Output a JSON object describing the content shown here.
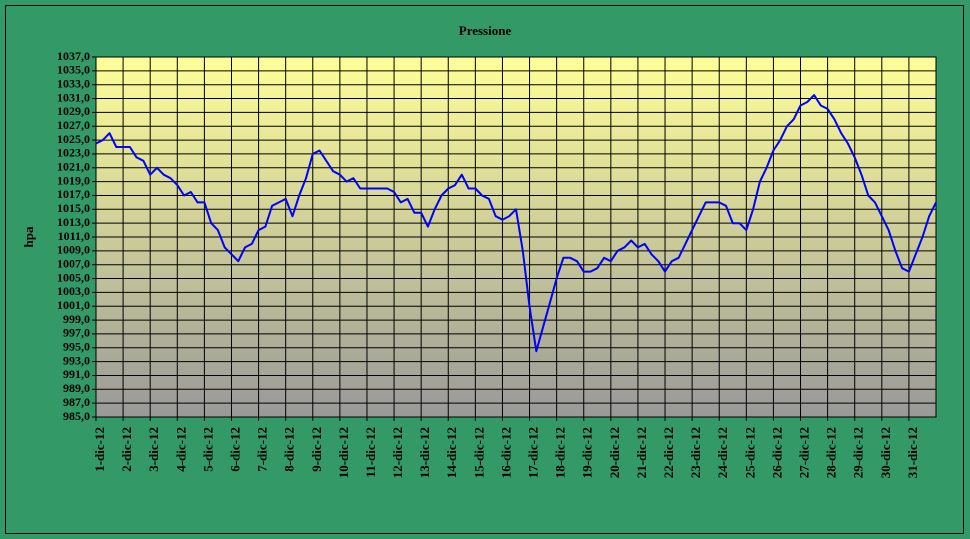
{
  "chart_data": {
    "type": "line",
    "title": "Pressione",
    "y_label": "hpa",
    "xlim": [
      0,
      31
    ],
    "xticks": [
      {
        "value": 0,
        "label": "1-dic-12"
      },
      {
        "value": 1,
        "label": "2-dic-12"
      },
      {
        "value": 2,
        "label": "3-dic-12"
      },
      {
        "value": 3,
        "label": "4-dic-12"
      },
      {
        "value": 4,
        "label": "5-dic-12"
      },
      {
        "value": 5,
        "label": "6-dic-12"
      },
      {
        "value": 6,
        "label": "7-dic-12"
      },
      {
        "value": 7,
        "label": "8-dic-12"
      },
      {
        "value": 8,
        "label": "9-dic-12"
      },
      {
        "value": 9,
        "label": "10-dic-12"
      },
      {
        "value": 10,
        "label": "11-dic-12"
      },
      {
        "value": 11,
        "label": "12-dic-12"
      },
      {
        "value": 12,
        "label": "13-dic-12"
      },
      {
        "value": 13,
        "label": "14-dic-12"
      },
      {
        "value": 14,
        "label": "15-dic-12"
      },
      {
        "value": 15,
        "label": "16-dic-12"
      },
      {
        "value": 16,
        "label": "17-dic-12"
      },
      {
        "value": 17,
        "label": "18-dic-12"
      },
      {
        "value": 18,
        "label": "19-dic-12"
      },
      {
        "value": 19,
        "label": "20-dic-12"
      },
      {
        "value": 20,
        "label": "21-dic-12"
      },
      {
        "value": 21,
        "label": "22-dic-12"
      },
      {
        "value": 22,
        "label": "23-dic-12"
      },
      {
        "value": 23,
        "label": "24-dic-12"
      },
      {
        "value": 24,
        "label": "25-dic-12"
      },
      {
        "value": 25,
        "label": "26-dic-12"
      },
      {
        "value": 26,
        "label": "27-dic-12"
      },
      {
        "value": 27,
        "label": "28-dic-12"
      },
      {
        "value": 28,
        "label": "29-dic-12"
      },
      {
        "value": 29,
        "label": "30-dic-12"
      },
      {
        "value": 30,
        "label": "31-dic-12"
      }
    ],
    "ylim": [
      985,
      1037
    ],
    "yticks": [
      {
        "value": 985,
        "label": "985,0"
      },
      {
        "value": 987,
        "label": "987,0"
      },
      {
        "value": 989,
        "label": "989,0"
      },
      {
        "value": 991,
        "label": "991,0"
      },
      {
        "value": 993,
        "label": "993,0"
      },
      {
        "value": 995,
        "label": "995,0"
      },
      {
        "value": 997,
        "label": "997,0"
      },
      {
        "value": 999,
        "label": "999,0"
      },
      {
        "value": 1001,
        "label": "1001,0"
      },
      {
        "value": 1003,
        "label": "1003,0"
      },
      {
        "value": 1005,
        "label": "1005,0"
      },
      {
        "value": 1007,
        "label": "1007,0"
      },
      {
        "value": 1009,
        "label": "1009,0"
      },
      {
        "value": 1011,
        "label": "1011,0"
      },
      {
        "value": 1013,
        "label": "1013,0"
      },
      {
        "value": 1015,
        "label": "1015,0"
      },
      {
        "value": 1017,
        "label": "1017,0"
      },
      {
        "value": 1019,
        "label": "1019,0"
      },
      {
        "value": 1021,
        "label": "1021,0"
      },
      {
        "value": 1023,
        "label": "1023,0"
      },
      {
        "value": 1025,
        "label": "1025,0"
      },
      {
        "value": 1027,
        "label": "1027,0"
      },
      {
        "value": 1029,
        "label": "1029,0"
      },
      {
        "value": 1031,
        "label": "1031,0"
      },
      {
        "value": 1033,
        "label": "1033,0"
      },
      {
        "value": 1035,
        "label": "1035,0"
      },
      {
        "value": 1037,
        "label": "1037,0"
      }
    ],
    "grid": true,
    "x": [
      0,
      0.25,
      0.5,
      0.75,
      1,
      1.25,
      1.5,
      1.75,
      2,
      2.25,
      2.5,
      2.75,
      3,
      3.25,
      3.5,
      3.75,
      4,
      4.25,
      4.5,
      4.75,
      5,
      5.25,
      5.5,
      5.75,
      6,
      6.25,
      6.5,
      6.75,
      7,
      7.25,
      7.5,
      7.75,
      8,
      8.25,
      8.5,
      8.75,
      9,
      9.25,
      9.5,
      9.75,
      10,
      10.25,
      10.5,
      10.75,
      11,
      11.25,
      11.5,
      11.75,
      12,
      12.25,
      12.5,
      12.75,
      13,
      13.25,
      13.5,
      13.75,
      14,
      14.25,
      14.5,
      14.75,
      15,
      15.25,
      15.5,
      15.75,
      16,
      16.25,
      16.5,
      16.75,
      17,
      17.25,
      17.5,
      17.75,
      18,
      18.25,
      18.5,
      18.75,
      19,
      19.25,
      19.5,
      19.75,
      20,
      20.25,
      20.5,
      20.75,
      21,
      21.25,
      21.5,
      21.75,
      22,
      22.25,
      22.5,
      22.75,
      23,
      23.25,
      23.5,
      23.75,
      24,
      24.25,
      24.5,
      24.75,
      25,
      25.25,
      25.5,
      25.75,
      26,
      26.25,
      26.5,
      26.75,
      27,
      27.25,
      27.5,
      27.75,
      28,
      28.25,
      28.5,
      28.75,
      29,
      29.25,
      29.5,
      29.75,
      30,
      30.25,
      30.5,
      30.75,
      31
    ],
    "series": [
      {
        "color": "#0000ff",
        "values": [
          1024.5,
          1025,
          1026,
          1024,
          1024,
          1024,
          1022.5,
          1022,
          1020,
          1021,
          1020,
          1019.5,
          1018.5,
          1017,
          1017.5,
          1016,
          1016,
          1013,
          1012,
          1009.5,
          1008.5,
          1007.5,
          1009.5,
          1010,
          1012,
          1012.5,
          1015.5,
          1016,
          1016.5,
          1014,
          1017,
          1019.5,
          1023,
          1023.5,
          1022,
          1020.5,
          1020,
          1019,
          1019.5,
          1018,
          1018,
          1018,
          1018,
          1018,
          1017.5,
          1016,
          1016.5,
          1014.5,
          1014.5,
          1012.5,
          1015,
          1017,
          1018,
          1018.5,
          1020,
          1018,
          1018,
          1017,
          1016.5,
          1014,
          1013.5,
          1014,
          1015,
          1009,
          1001,
          994.5,
          998,
          1001.5,
          1005,
          1008,
          1008,
          1007.5,
          1006,
          1006,
          1006.5,
          1008,
          1007.5,
          1009,
          1009.5,
          1010.5,
          1009.5,
          1010,
          1008.5,
          1007.5,
          1006,
          1007.5,
          1008,
          1010,
          1012,
          1014,
          1016,
          1016,
          1016,
          1015.5,
          1013,
          1013,
          1012,
          1015,
          1019,
          1021,
          1023.5,
          1025,
          1027,
          1028,
          1030,
          1030.5,
          1031.5,
          1030,
          1029.5,
          1028,
          1026,
          1024.5,
          1022.5,
          1020,
          1017,
          1016,
          1014,
          1012,
          1009,
          1006.5,
          1006,
          1008.5,
          1011,
          1014,
          1016
        ]
      }
    ]
  }
}
